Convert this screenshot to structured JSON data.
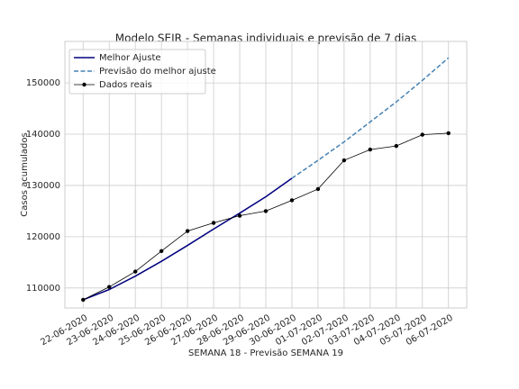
{
  "chart_data": {
    "type": "line",
    "title": "Modelo SEIR - Semanas individuais e previsão de 7 dias",
    "xlabel": "SEMANA 18 - Previsão SEMANA 19",
    "ylabel": "Casos acumulados",
    "categories": [
      "22-06-2020",
      "23-06-2020",
      "24-06-2020",
      "25-06-2020",
      "26-06-2020",
      "27-06-2020",
      "28-06-2020",
      "29-06-2020",
      "30-06-2020",
      "01-07-2020",
      "02-07-2020",
      "03-07-2020",
      "04-07-2020",
      "05-07-2020",
      "06-07-2020"
    ],
    "series": [
      {
        "name": "Melhor Ajuste",
        "color": "#00007f",
        "dashed": false,
        "marker": false,
        "values": [
          107700,
          109700,
          112300,
          115200,
          118300,
          121500,
          124600,
          127800,
          131400,
          null,
          null,
          null,
          null,
          null,
          null
        ]
      },
      {
        "name": "Previsão do melhor ajuste",
        "color": "#4682b4",
        "dashed": true,
        "marker": false,
        "values": [
          null,
          null,
          null,
          null,
          null,
          null,
          null,
          null,
          131400,
          134900,
          138500,
          142400,
          146300,
          150500,
          154900
        ]
      },
      {
        "name": "Dados reais",
        "color": "#000000",
        "dashed": false,
        "marker": true,
        "values": [
          107700,
          110200,
          113200,
          117200,
          121100,
          122700,
          124100,
          125000,
          127100,
          129300,
          134900,
          137000,
          137700,
          139900,
          140200
        ]
      }
    ],
    "ylim": [
      106100,
      158100
    ],
    "yticks": [
      110000,
      120000,
      130000,
      140000,
      150000
    ],
    "grid": true,
    "legend": "upper left"
  }
}
